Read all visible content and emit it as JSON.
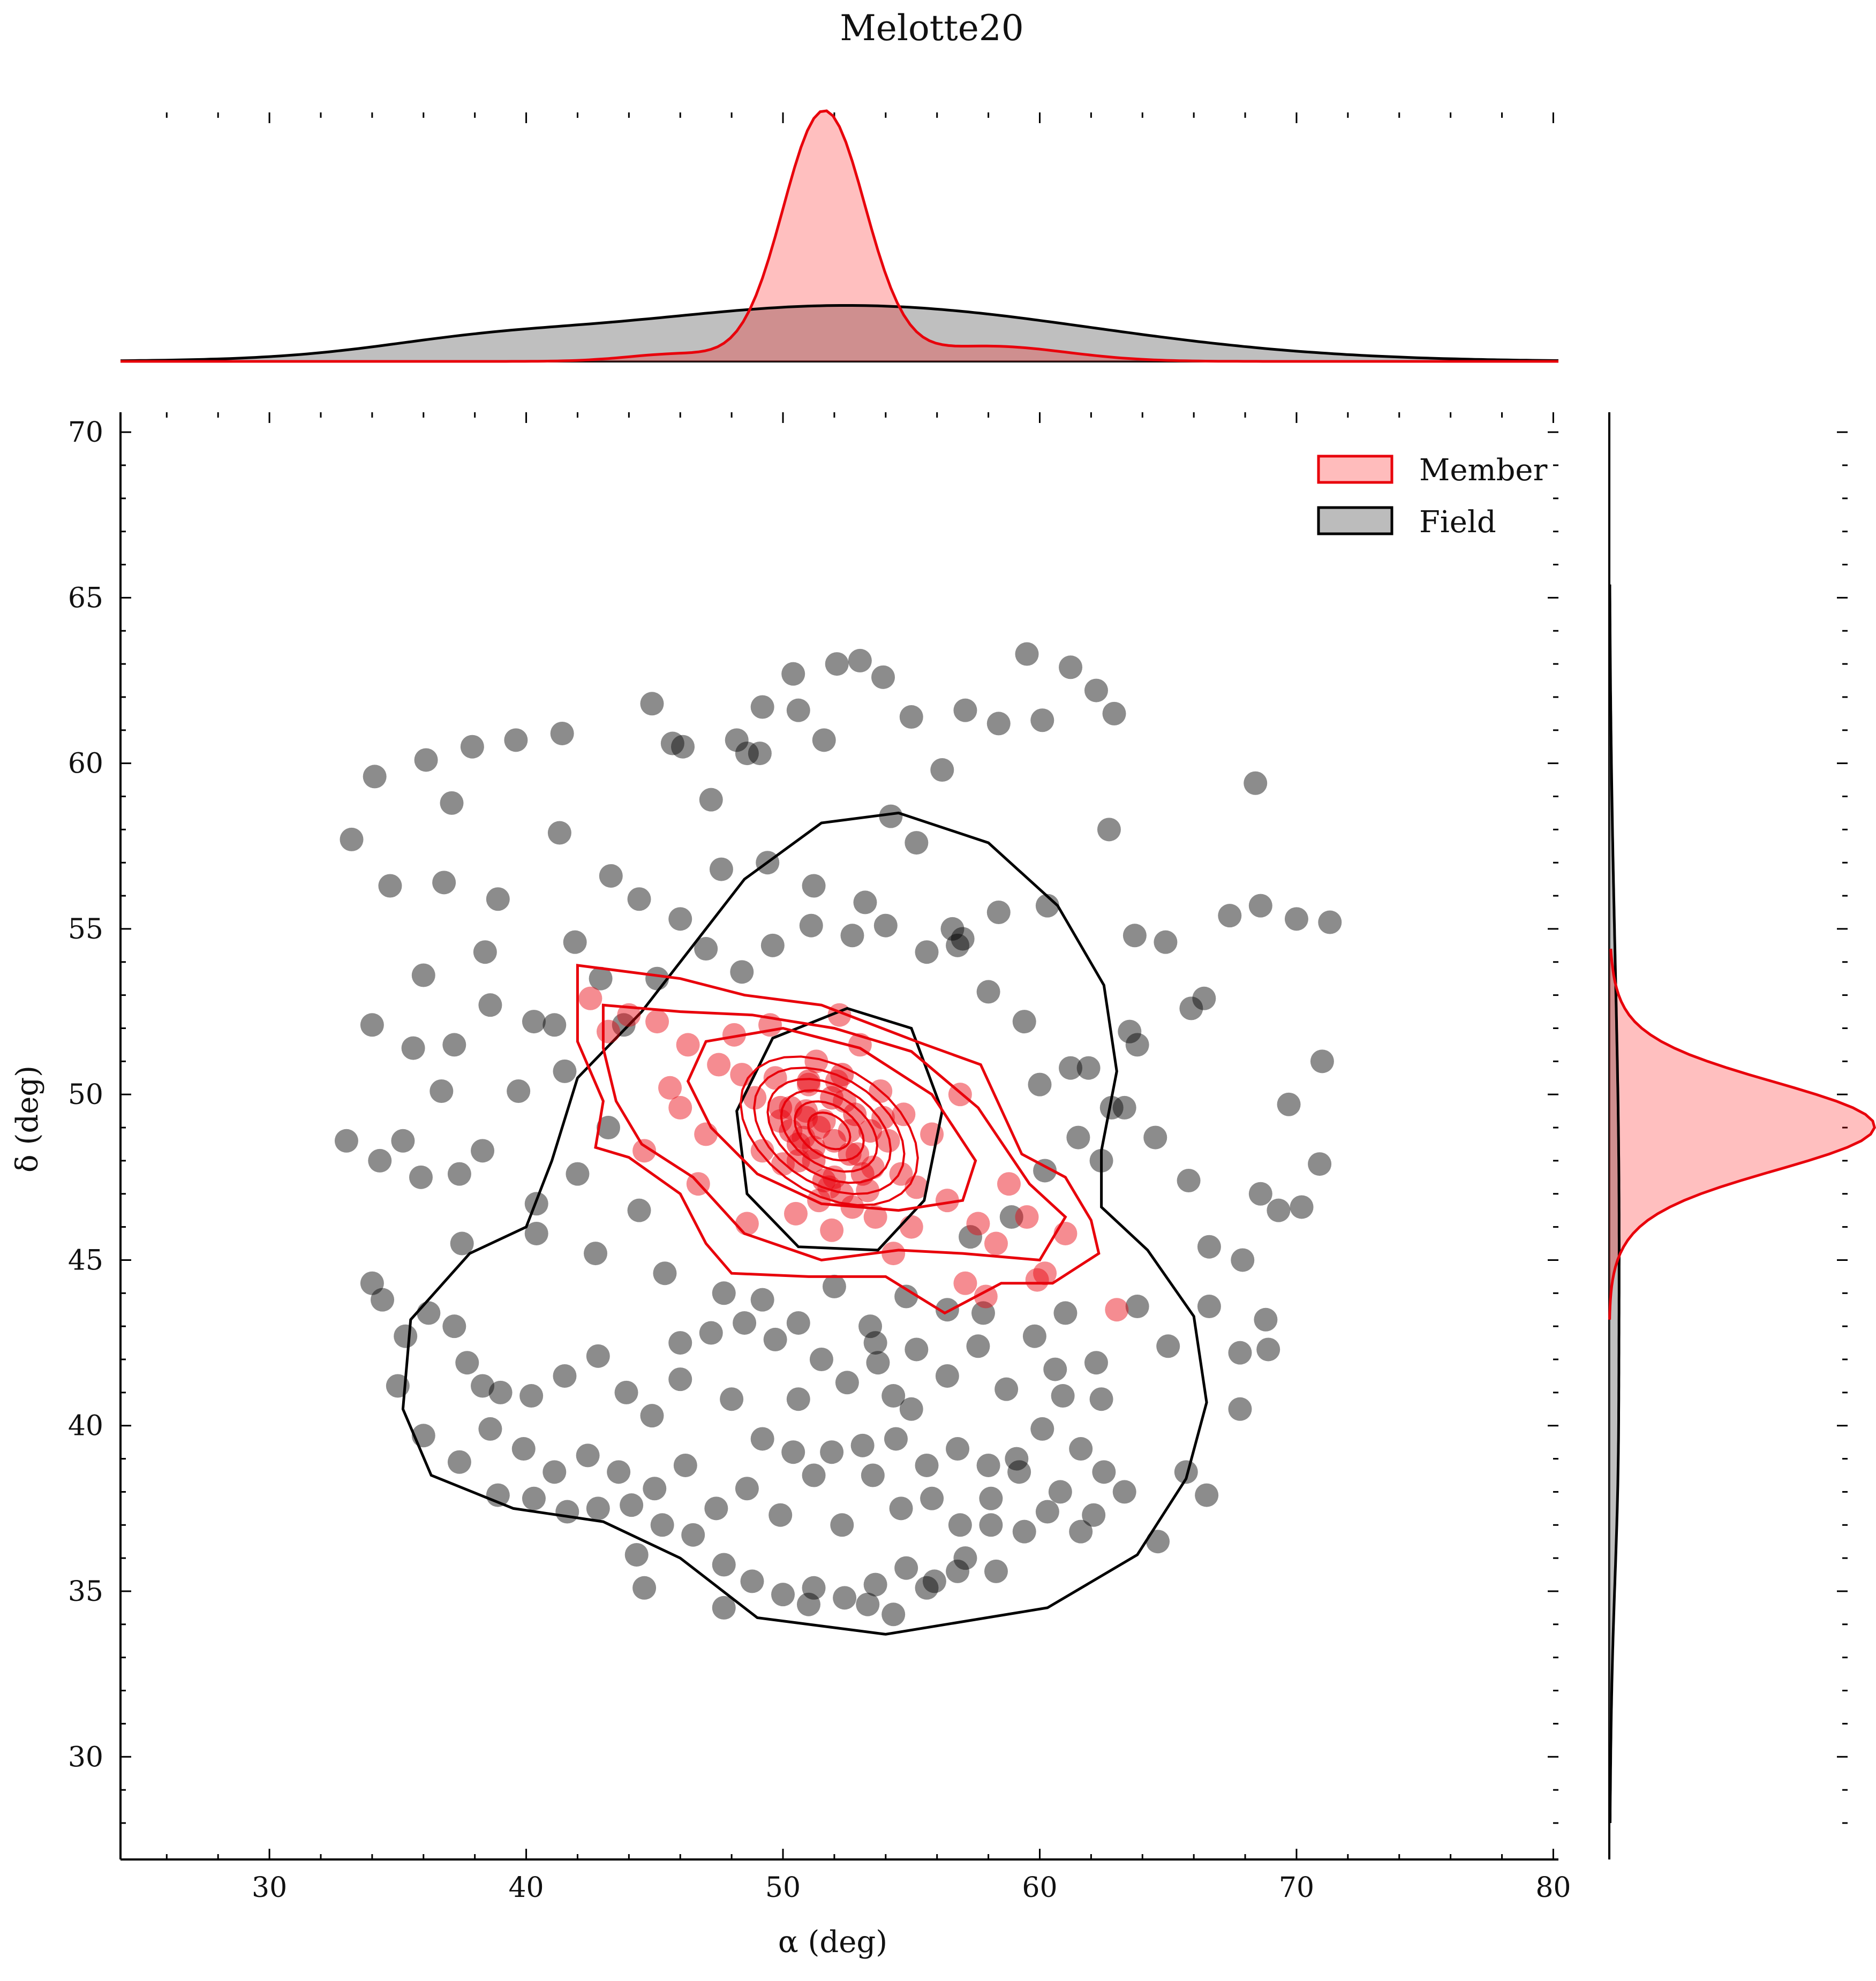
{
  "chart_data": {
    "type": "scatter",
    "title": "Melotte20",
    "xlabel": "α (deg)",
    "ylabel": "δ (deg)",
    "xlim": [
      24.2,
      80.2
    ],
    "ylim": [
      26.9,
      70.6
    ],
    "xticks": [
      "30",
      "40",
      "50",
      "60",
      "70",
      "80"
    ],
    "yticks": [
      "30",
      "35",
      "40",
      "45",
      "50",
      "55",
      "60",
      "65",
      "70"
    ],
    "grid": false,
    "legend_placement": "top-right",
    "legend": [
      {
        "name": "Member",
        "color": "#e8000b",
        "fill": "#ffbcbc"
      },
      {
        "name": "Field",
        "color": "#000000",
        "fill": "#bcbcbc"
      }
    ],
    "marginals": {
      "alpha_member_kde": {
        "mean": 51.6,
        "sd": 1.6,
        "peak_frac": 0.98
      },
      "alpha_field_kde": {
        "mean": 52.5,
        "sd": 9.5,
        "peak_frac": 0.22
      },
      "delta_member_kde": {
        "mean": 49.0,
        "sd": 1.3,
        "peak_frac": 0.98
      },
      "delta_field_kde": {
        "mean": 46.0,
        "sd": 8.0,
        "peak_frac": 0.04
      }
    },
    "series": [
      {
        "name": "Member",
        "color": "#e8000b",
        "points": [
          [
            51.6,
            49.2
          ],
          [
            50.8,
            48.7
          ],
          [
            52.4,
            49.8
          ],
          [
            51.0,
            50.3
          ],
          [
            52.9,
            48.2
          ],
          [
            50.3,
            49.6
          ],
          [
            53.5,
            47.8
          ],
          [
            49.7,
            50.5
          ],
          [
            54.1,
            48.6
          ],
          [
            48.9,
            49.9
          ],
          [
            52.0,
            47.5
          ],
          [
            51.3,
            51.0
          ],
          [
            55.2,
            47.2
          ],
          [
            47.5,
            50.9
          ],
          [
            53.8,
            50.1
          ],
          [
            50.0,
            47.9
          ],
          [
            56.4,
            46.8
          ],
          [
            46.3,
            51.5
          ],
          [
            54.7,
            49.4
          ],
          [
            49.2,
            48.3
          ],
          [
            57.6,
            46.1
          ],
          [
            45.1,
            52.2
          ],
          [
            52.7,
            46.6
          ],
          [
            48.1,
            51.8
          ],
          [
            58.3,
            45.5
          ],
          [
            44.0,
            52.4
          ],
          [
            55.8,
            48.8
          ],
          [
            51.9,
            45.9
          ],
          [
            59.5,
            46.3
          ],
          [
            43.2,
            51.9
          ],
          [
            53.0,
            51.5
          ],
          [
            50.5,
            46.4
          ],
          [
            57.1,
            44.3
          ],
          [
            47.0,
            48.8
          ],
          [
            61.0,
            45.8
          ],
          [
            46.0,
            49.6
          ],
          [
            54.3,
            45.2
          ],
          [
            49.5,
            52.1
          ],
          [
            56.9,
            50.0
          ],
          [
            48.6,
            46.1
          ],
          [
            60.2,
            44.6
          ],
          [
            42.5,
            52.9
          ],
          [
            55.0,
            46.0
          ],
          [
            52.2,
            52.4
          ],
          [
            58.8,
            47.3
          ],
          [
            45.6,
            50.2
          ],
          [
            51.4,
            46.8
          ],
          [
            53.3,
            47.1
          ],
          [
            50.6,
            48.0
          ],
          [
            52.6,
            48.9
          ],
          [
            51.2,
            48.4
          ],
          [
            52.1,
            50.4
          ],
          [
            50.9,
            49.5
          ],
          [
            53.9,
            49.3
          ],
          [
            49.9,
            49.2
          ],
          [
            51.8,
            47.2
          ],
          [
            52.3,
            47.0
          ],
          [
            54.6,
            47.6
          ],
          [
            48.4,
            50.6
          ],
          [
            53.6,
            46.3
          ],
          [
            63.0,
            43.5
          ],
          [
            57.9,
            43.9
          ],
          [
            59.9,
            44.4
          ],
          [
            46.7,
            47.3
          ],
          [
            44.6,
            48.3
          ]
        ]
      },
      {
        "name": "Field",
        "color": "#000000",
        "points": [
          [
            33.2,
            57.7
          ],
          [
            34.1,
            59.6
          ],
          [
            36.1,
            60.1
          ],
          [
            37.9,
            60.5
          ],
          [
            39.6,
            60.7
          ],
          [
            41.4,
            60.9
          ],
          [
            43.3,
            56.6
          ],
          [
            44.9,
            61.8
          ],
          [
            46.1,
            60.5
          ],
          [
            48.6,
            60.3
          ],
          [
            49.2,
            61.7
          ],
          [
            50.6,
            61.6
          ],
          [
            52.1,
            63.0
          ],
          [
            53.0,
            63.1
          ],
          [
            53.9,
            62.6
          ],
          [
            55.0,
            61.4
          ],
          [
            57.1,
            61.6
          ],
          [
            59.5,
            63.3
          ],
          [
            60.1,
            61.3
          ],
          [
            61.2,
            62.9
          ],
          [
            62.2,
            62.2
          ],
          [
            62.9,
            61.5
          ],
          [
            58.4,
            61.2
          ],
          [
            56.2,
            59.8
          ],
          [
            54.2,
            58.4
          ],
          [
            51.6,
            60.7
          ],
          [
            47.2,
            58.9
          ],
          [
            45.7,
            60.6
          ],
          [
            41.3,
            57.9
          ],
          [
            37.1,
            58.8
          ],
          [
            34.7,
            56.3
          ],
          [
            36.8,
            56.4
          ],
          [
            38.9,
            55.9
          ],
          [
            41.9,
            54.6
          ],
          [
            44.4,
            55.9
          ],
          [
            47.6,
            56.8
          ],
          [
            49.4,
            57.0
          ],
          [
            51.2,
            56.3
          ],
          [
            53.2,
            55.8
          ],
          [
            55.2,
            57.6
          ],
          [
            56.6,
            55.0
          ],
          [
            58.4,
            55.5
          ],
          [
            60.3,
            55.7
          ],
          [
            62.7,
            58.0
          ],
          [
            63.7,
            54.8
          ],
          [
            64.9,
            54.6
          ],
          [
            67.4,
            55.4
          ],
          [
            68.6,
            55.7
          ],
          [
            70.0,
            55.3
          ],
          [
            71.3,
            55.2
          ],
          [
            68.4,
            59.4
          ],
          [
            66.4,
            52.9
          ],
          [
            65.9,
            52.6
          ],
          [
            63.5,
            51.9
          ],
          [
            61.9,
            50.8
          ],
          [
            62.8,
            49.6
          ],
          [
            64.5,
            48.7
          ],
          [
            65.8,
            47.4
          ],
          [
            66.6,
            45.4
          ],
          [
            67.9,
            45.0
          ],
          [
            68.6,
            47.0
          ],
          [
            69.3,
            46.5
          ],
          [
            70.2,
            46.6
          ],
          [
            70.9,
            47.9
          ],
          [
            69.7,
            49.7
          ],
          [
            71.0,
            51.0
          ],
          [
            68.8,
            43.2
          ],
          [
            67.8,
            42.2
          ],
          [
            66.6,
            43.6
          ],
          [
            65.0,
            42.4
          ],
          [
            63.8,
            43.6
          ],
          [
            62.2,
            41.9
          ],
          [
            61.0,
            43.4
          ],
          [
            60.6,
            41.7
          ],
          [
            60.1,
            39.9
          ],
          [
            60.8,
            38.0
          ],
          [
            61.6,
            36.8
          ],
          [
            62.1,
            37.3
          ],
          [
            62.5,
            38.6
          ],
          [
            63.3,
            38.0
          ],
          [
            64.6,
            36.5
          ],
          [
            65.7,
            38.6
          ],
          [
            66.5,
            37.9
          ],
          [
            67.8,
            40.5
          ],
          [
            68.9,
            42.3
          ],
          [
            38.4,
            54.3
          ],
          [
            36.0,
            53.6
          ],
          [
            34.0,
            52.1
          ],
          [
            35.6,
            51.4
          ],
          [
            37.2,
            51.5
          ],
          [
            38.6,
            52.7
          ],
          [
            36.7,
            50.1
          ],
          [
            35.2,
            48.6
          ],
          [
            34.3,
            48.0
          ],
          [
            33.0,
            48.6
          ],
          [
            35.9,
            47.5
          ],
          [
            37.4,
            47.6
          ],
          [
            38.3,
            48.3
          ],
          [
            40.4,
            46.7
          ],
          [
            42.0,
            47.6
          ],
          [
            44.4,
            46.5
          ],
          [
            43.2,
            49.0
          ],
          [
            41.5,
            50.7
          ],
          [
            40.3,
            52.2
          ],
          [
            39.7,
            50.1
          ],
          [
            42.7,
            45.2
          ],
          [
            40.4,
            45.8
          ],
          [
            37.5,
            45.5
          ],
          [
            34.0,
            44.3
          ],
          [
            34.4,
            43.8
          ],
          [
            35.3,
            42.7
          ],
          [
            36.2,
            43.4
          ],
          [
            37.2,
            43.0
          ],
          [
            37.7,
            41.9
          ],
          [
            38.3,
            41.2
          ],
          [
            39.0,
            41.0
          ],
          [
            40.2,
            40.9
          ],
          [
            41.5,
            41.5
          ],
          [
            42.8,
            42.1
          ],
          [
            43.9,
            41.0
          ],
          [
            44.9,
            40.3
          ],
          [
            46.0,
            41.4
          ],
          [
            47.2,
            42.8
          ],
          [
            48.5,
            43.1
          ],
          [
            49.7,
            42.6
          ],
          [
            50.6,
            40.8
          ],
          [
            51.5,
            42.0
          ],
          [
            52.5,
            41.3
          ],
          [
            53.6,
            42.5
          ],
          [
            54.3,
            40.9
          ],
          [
            55.2,
            42.3
          ],
          [
            56.4,
            41.5
          ],
          [
            57.6,
            42.4
          ],
          [
            58.7,
            41.1
          ],
          [
            59.8,
            42.7
          ],
          [
            35.0,
            41.2
          ],
          [
            36.0,
            39.7
          ],
          [
            37.4,
            38.9
          ],
          [
            38.6,
            39.9
          ],
          [
            39.9,
            39.3
          ],
          [
            41.1,
            38.6
          ],
          [
            42.4,
            39.1
          ],
          [
            43.6,
            38.6
          ],
          [
            45.0,
            38.1
          ],
          [
            46.2,
            38.8
          ],
          [
            47.4,
            37.5
          ],
          [
            48.6,
            38.1
          ],
          [
            49.9,
            37.3
          ],
          [
            51.2,
            38.5
          ],
          [
            52.3,
            37.0
          ],
          [
            53.5,
            38.5
          ],
          [
            54.6,
            37.5
          ],
          [
            55.8,
            37.8
          ],
          [
            56.9,
            37.0
          ],
          [
            58.1,
            37.8
          ],
          [
            59.2,
            38.6
          ],
          [
            60.3,
            37.4
          ],
          [
            38.9,
            37.9
          ],
          [
            40.3,
            37.8
          ],
          [
            41.6,
            37.4
          ],
          [
            42.8,
            37.5
          ],
          [
            44.1,
            37.6
          ],
          [
            45.3,
            37.0
          ],
          [
            46.5,
            36.7
          ],
          [
            47.7,
            35.8
          ],
          [
            48.8,
            35.3
          ],
          [
            50.0,
            34.9
          ],
          [
            51.2,
            35.1
          ],
          [
            52.4,
            34.8
          ],
          [
            53.6,
            35.2
          ],
          [
            54.8,
            35.7
          ],
          [
            55.9,
            35.3
          ],
          [
            57.1,
            36.0
          ],
          [
            58.3,
            35.6
          ],
          [
            59.4,
            36.8
          ],
          [
            44.3,
            36.1
          ],
          [
            44.6,
            35.1
          ],
          [
            47.7,
            34.5
          ],
          [
            51.0,
            34.6
          ],
          [
            53.3,
            34.6
          ],
          [
            54.3,
            34.3
          ],
          [
            55.6,
            35.1
          ],
          [
            56.8,
            35.6
          ],
          [
            58.1,
            37.0
          ],
          [
            49.2,
            39.6
          ],
          [
            50.4,
            39.2
          ],
          [
            51.9,
            39.2
          ],
          [
            53.1,
            39.4
          ],
          [
            54.4,
            39.6
          ],
          [
            55.6,
            38.8
          ],
          [
            56.8,
            39.3
          ],
          [
            58.0,
            38.8
          ],
          [
            59.1,
            39.0
          ],
          [
            48.0,
            40.8
          ],
          [
            53.7,
            41.9
          ],
          [
            55.0,
            40.5
          ],
          [
            56.4,
            43.5
          ],
          [
            57.8,
            43.4
          ],
          [
            46.0,
            42.5
          ],
          [
            45.4,
            44.6
          ],
          [
            47.7,
            44.0
          ],
          [
            49.2,
            43.8
          ],
          [
            50.6,
            43.1
          ],
          [
            52.0,
            44.2
          ],
          [
            53.4,
            43.0
          ],
          [
            54.8,
            43.9
          ],
          [
            60.9,
            40.9
          ],
          [
            61.6,
            39.3
          ],
          [
            62.4,
            40.8
          ],
          [
            57.3,
            45.7
          ],
          [
            58.9,
            46.3
          ],
          [
            60.2,
            47.7
          ],
          [
            61.5,
            48.7
          ],
          [
            60.0,
            50.3
          ],
          [
            61.2,
            50.8
          ],
          [
            59.4,
            52.2
          ],
          [
            58.0,
            53.1
          ],
          [
            57.0,
            54.7
          ],
          [
            55.6,
            54.3
          ],
          [
            54.0,
            55.1
          ],
          [
            52.7,
            54.8
          ],
          [
            51.1,
            55.1
          ],
          [
            49.6,
            54.5
          ],
          [
            48.4,
            53.7
          ],
          [
            47.0,
            54.4
          ],
          [
            46.0,
            55.3
          ],
          [
            45.1,
            53.5
          ],
          [
            43.8,
            52.1
          ],
          [
            42.9,
            53.5
          ],
          [
            41.1,
            52.1
          ],
          [
            63.3,
            49.6
          ],
          [
            62.4,
            48.0
          ],
          [
            63.8,
            51.5
          ],
          [
            56.8,
            54.5
          ],
          [
            49.1,
            60.3
          ],
          [
            50.4,
            62.7
          ],
          [
            48.2,
            60.7
          ]
        ]
      }
    ]
  }
}
